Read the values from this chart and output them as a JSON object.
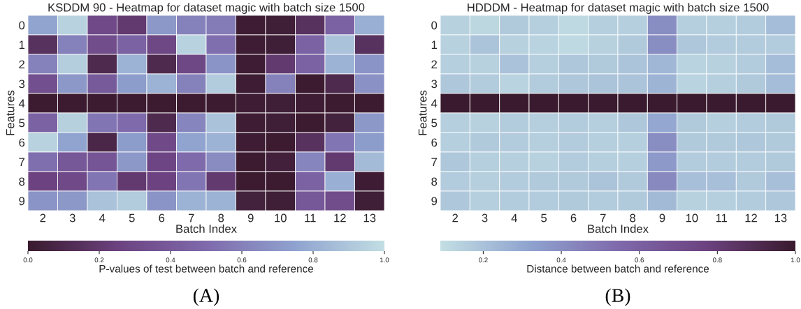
{
  "chart_data": [
    {
      "type": "heatmap",
      "title": "KSDDM 90 - Heatmap for dataset magic with batch size 1500",
      "xlabel": "Batch Index",
      "ylabel": "Features",
      "clabel": "P-values of test between batch and reference",
      "annotations": [
        "(A)"
      ],
      "categories": [
        "2",
        "3",
        "4",
        "5",
        "6",
        "7",
        "8",
        "9",
        "10",
        "11",
        "12",
        "13"
      ],
      "y_categories": [
        "0",
        "1",
        "2",
        "3",
        "4",
        "5",
        "6",
        "7",
        "8",
        "9"
      ],
      "colors": [
        "#3a1a2e",
        "#6c4280",
        "#7f6aac",
        "#8fa3cf",
        "#c2dee3"
      ],
      "clim": [
        0,
        1
      ],
      "cticks": [
        {
          "value": 0,
          "label": "0.0"
        },
        {
          "value": 0.2,
          "label": "0.2"
        },
        {
          "value": 0.4,
          "label": "0.4"
        },
        {
          "value": 0.6,
          "label": "0.6"
        },
        {
          "value": 0.8,
          "label": "0.8"
        },
        {
          "value": 1,
          "label": "1.0"
        }
      ],
      "cells": [
        [
          0.75,
          0.95,
          0.3,
          0.2,
          0.7,
          0.6,
          0.58,
          0.02,
          0.03,
          0.15,
          0.45,
          0.8
        ],
        [
          0.15,
          0.6,
          0.32,
          0.45,
          0.28,
          0.95,
          0.52,
          0.02,
          0.03,
          0.45,
          0.88,
          0.15
        ],
        [
          0.6,
          0.93,
          0.1,
          0.82,
          0.1,
          0.28,
          0.68,
          0.02,
          0.2,
          0.45,
          0.82,
          0.68
        ],
        [
          0.33,
          0.7,
          0.4,
          0.72,
          0.82,
          0.6,
          0.92,
          0.02,
          0.6,
          0.01,
          0.1,
          0.67
        ],
        [
          0.01,
          0.01,
          0.01,
          0.01,
          0.01,
          0.01,
          0.01,
          0.02,
          0.03,
          0.02,
          0.01,
          0.01
        ],
        [
          0.45,
          0.94,
          0.55,
          0.5,
          0.1,
          0.62,
          0.88,
          0.02,
          0.03,
          0.01,
          0.05,
          0.7
        ],
        [
          0.95,
          0.75,
          0.08,
          0.72,
          0.3,
          0.75,
          0.82,
          0.02,
          0.01,
          0.15,
          0.55,
          0.72
        ],
        [
          0.52,
          0.38,
          0.37,
          0.7,
          0.27,
          0.5,
          0.65,
          0.01,
          0.04,
          0.62,
          0.2,
          0.85
        ],
        [
          0.25,
          0.3,
          0.55,
          0.2,
          0.25,
          0.55,
          0.2,
          0.01,
          0.01,
          0.45,
          0.8,
          0.02
        ],
        [
          0.68,
          0.7,
          0.88,
          0.92,
          0.68,
          0.82,
          0.82,
          0.05,
          0.03,
          0.38,
          0.32,
          0.03
        ]
      ]
    },
    {
      "type": "heatmap",
      "title": "HDDDM - Heatmap for dataset magic with batch size 1500",
      "xlabel": "Batch Index",
      "ylabel": "Features",
      "clabel": "Distance between batch and reference",
      "annotations": [
        "(B)"
      ],
      "categories": [
        "2",
        "3",
        "4",
        "5",
        "6",
        "7",
        "8",
        "9",
        "10",
        "11",
        "12",
        "13"
      ],
      "y_categories": [
        "0",
        "1",
        "2",
        "3",
        "4",
        "5",
        "6",
        "7",
        "8",
        "9"
      ],
      "colors": [
        "#c2dee3",
        "#8fa3cf",
        "#7f6aac",
        "#6c4280",
        "#3a1a2e"
      ],
      "clim": [
        0.09,
        1
      ],
      "cticks": [
        {
          "value": 0.2,
          "label": "0.2"
        },
        {
          "value": 0.4,
          "label": "0.4"
        },
        {
          "value": 0.6,
          "label": "0.6"
        },
        {
          "value": 0.8,
          "label": "0.8"
        },
        {
          "value": 1,
          "label": "1.0"
        }
      ],
      "cells": [
        [
          0.14,
          0.12,
          0.17,
          0.15,
          0.11,
          0.15,
          0.15,
          0.4,
          0.15,
          0.15,
          0.16,
          0.22
        ],
        [
          0.14,
          0.19,
          0.14,
          0.13,
          0.11,
          0.14,
          0.17,
          0.4,
          0.18,
          0.16,
          0.16,
          0.16
        ],
        [
          0.15,
          0.14,
          0.2,
          0.15,
          0.18,
          0.17,
          0.19,
          0.24,
          0.13,
          0.14,
          0.16,
          0.22
        ],
        [
          0.18,
          0.16,
          0.13,
          0.16,
          0.18,
          0.19,
          0.19,
          0.25,
          0.13,
          0.15,
          0.17,
          0.22
        ],
        [
          1,
          1,
          1,
          1,
          1,
          1,
          1,
          1,
          1,
          1,
          1,
          1
        ],
        [
          0.15,
          0.14,
          0.16,
          0.15,
          0.16,
          0.15,
          0.18,
          0.3,
          0.17,
          0.15,
          0.16,
          0.17
        ],
        [
          0.15,
          0.17,
          0.16,
          0.15,
          0.16,
          0.15,
          0.15,
          0.4,
          0.17,
          0.17,
          0.18,
          0.17
        ],
        [
          0.18,
          0.15,
          0.15,
          0.14,
          0.16,
          0.15,
          0.15,
          0.36,
          0.16,
          0.16,
          0.16,
          0.17
        ],
        [
          0.16,
          0.15,
          0.16,
          0.17,
          0.17,
          0.19,
          0.17,
          0.42,
          0.21,
          0.21,
          0.17,
          0.21
        ],
        [
          0.18,
          0.15,
          0.16,
          0.16,
          0.17,
          0.16,
          0.17,
          0.23,
          0.14,
          0.15,
          0.16,
          0.18
        ]
      ]
    }
  ]
}
